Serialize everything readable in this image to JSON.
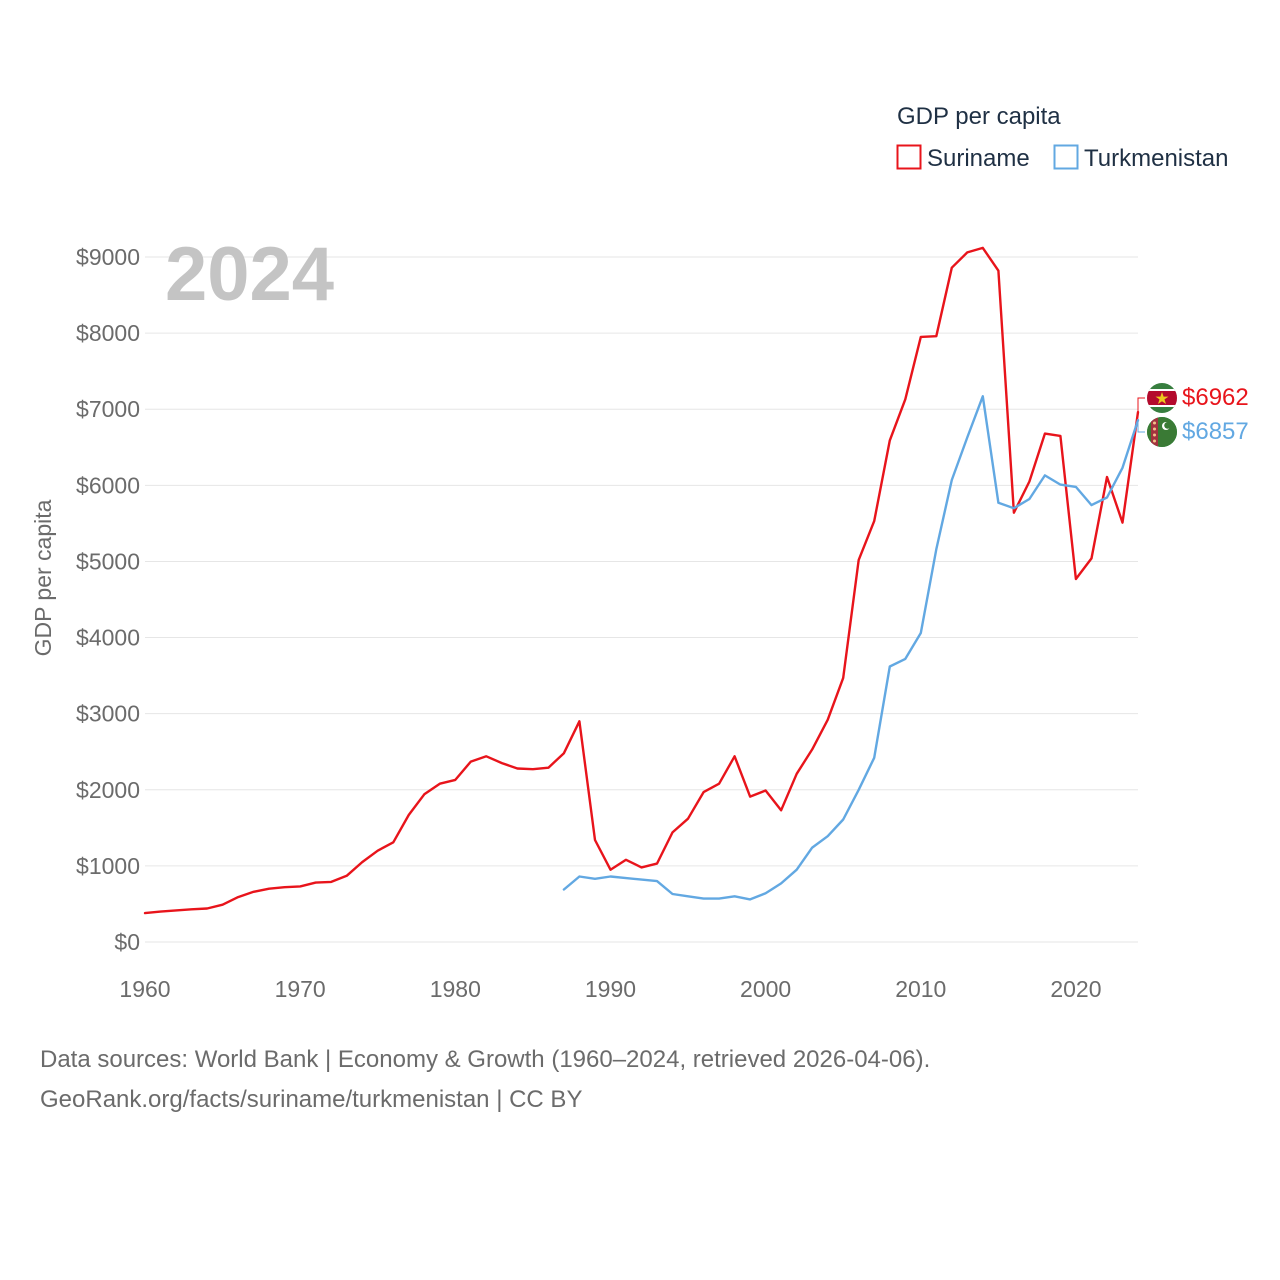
{
  "colors": {
    "suriname": "#e8141b",
    "turkmenistan": "#62a8e2"
  },
  "legend": {
    "title": "GDP per capita",
    "items": [
      "Suriname",
      "Turkmenistan"
    ]
  },
  "year_badge": "2024",
  "end_labels": {
    "suriname": "$6962",
    "turkmenistan": "$6857"
  },
  "footer": {
    "line1": "Data sources: World Bank | Economy & Growth (1960–2024, retrieved 2026-04-06).",
    "line2": "GeoRank.org/facts/suriname/turkmenistan | CC BY"
  },
  "chart_data": {
    "type": "line",
    "title": "",
    "xlabel": "",
    "ylabel": "GDP per capita",
    "xlim": [
      1960,
      2024
    ],
    "ylim": [
      0,
      9000
    ],
    "x_ticks": [
      "1960",
      "1970",
      "1980",
      "1990",
      "2000",
      "2010",
      "2020"
    ],
    "y_ticks": [
      "$0",
      "$1000",
      "$2000",
      "$3000",
      "$4000",
      "$5000",
      "$6000",
      "$7000",
      "$8000",
      "$9000"
    ],
    "grid": true,
    "legend_position": "top-right",
    "series": [
      {
        "name": "Suriname",
        "start_year": 1960,
        "values": [
          380,
          400,
          415,
          430,
          440,
          490,
          590,
          660,
          700,
          720,
          730,
          780,
          790,
          870,
          1050,
          1200,
          1310,
          1670,
          1940,
          2080,
          2130,
          2370,
          2440,
          2350,
          2280,
          2270,
          2290,
          2480,
          2900,
          1340,
          950,
          1080,
          980,
          1030,
          1440,
          1620,
          1970,
          2080,
          2440,
          1910,
          1990,
          1730,
          2210,
          2530,
          2920,
          3470,
          5020,
          5530,
          6590,
          7130,
          7950,
          7960,
          8860,
          9060,
          9120,
          8820,
          5640,
          6050,
          6680,
          6650,
          4770,
          5040,
          6110,
          5510,
          6962
        ]
      },
      {
        "name": "Turkmenistan",
        "start_year": 1987,
        "values": [
          690,
          860,
          830,
          860,
          840,
          820,
          800,
          630,
          600,
          570,
          570,
          600,
          560,
          640,
          770,
          950,
          1240,
          1390,
          1610,
          2000,
          2420,
          3620,
          3720,
          4060,
          5160,
          6070,
          6630,
          7170,
          5770,
          5700,
          5820,
          6130,
          6010,
          5980,
          5740,
          5840,
          6230,
          6857
        ]
      }
    ]
  }
}
